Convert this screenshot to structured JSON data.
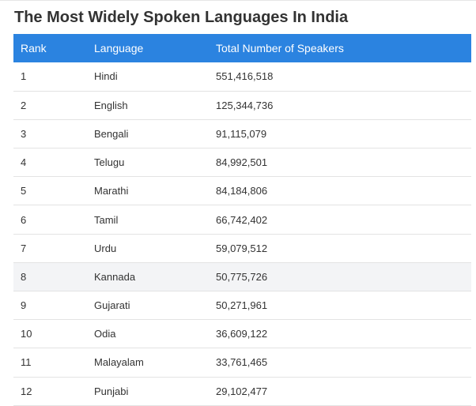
{
  "page": {
    "title": "The Most Widely Spoken Languages In India"
  },
  "table": {
    "headers": [
      "Rank",
      "Language",
      "Total Number of Speakers"
    ],
    "rows": [
      [
        "1",
        "Hindi",
        "551,416,518"
      ],
      [
        "2",
        "English",
        "125,344,736"
      ],
      [
        "3",
        "Bengali",
        "91,115,079"
      ],
      [
        "4",
        "Telugu",
        "84,992,501"
      ],
      [
        "5",
        "Marathi",
        "84,184,806"
      ],
      [
        "6",
        "Tamil",
        "66,742,402"
      ],
      [
        "7",
        "Urdu",
        "59,079,512"
      ],
      [
        "8",
        "Kannada",
        "50,775,726"
      ],
      [
        "9",
        "Gujarati",
        "50,271,961"
      ],
      [
        "10",
        "Odia",
        "36,609,122"
      ],
      [
        "11",
        "Malayalam",
        "33,761,465"
      ],
      [
        "12",
        "Punjabi",
        "29,102,477"
      ]
    ]
  },
  "colors": {
    "header_bg": "#2b83e0",
    "header_text": "#ffffff",
    "body_text": "#333333",
    "row_divider": "#e3e3e3",
    "highlight_row_bg": "#f3f4f6"
  }
}
